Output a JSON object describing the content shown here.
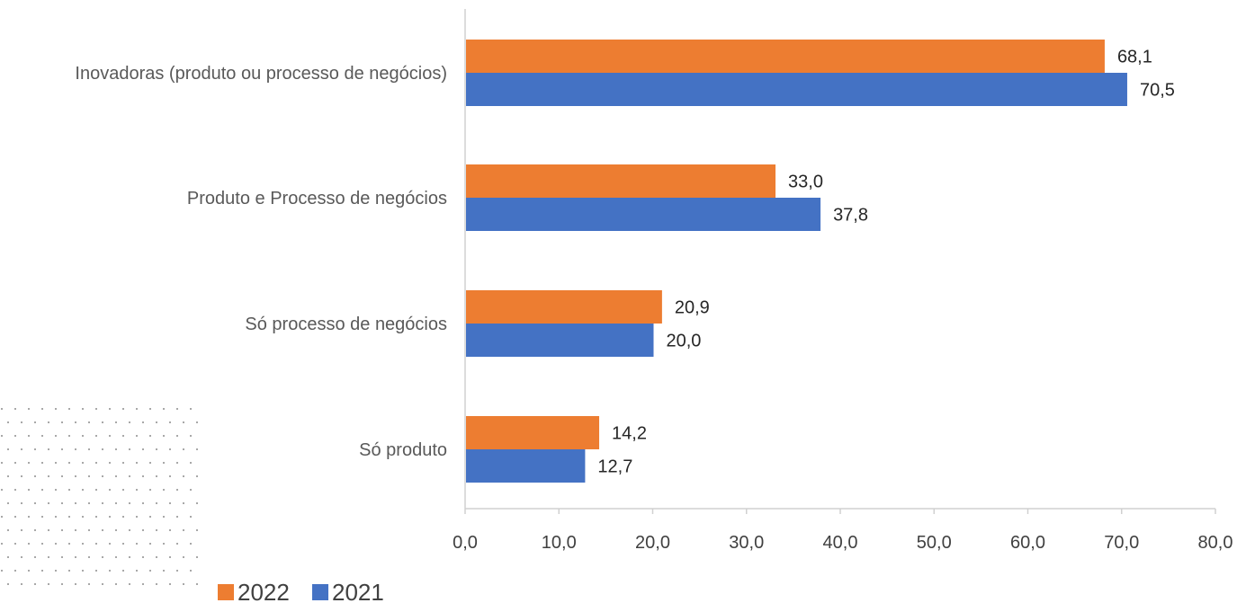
{
  "chart_data": {
    "type": "bar",
    "orientation": "horizontal",
    "categories": [
      "Inovadoras (produto ou processo de negócios)",
      "Produto e Processo de negócios",
      "Só processo de negócios",
      "Só produto"
    ],
    "series": [
      {
        "name": "2022",
        "color": "#ED7D31",
        "values": [
          68.1,
          33.0,
          20.9,
          14.2
        ],
        "labels": [
          "68,1",
          "33,0",
          "20,9",
          "14,2"
        ]
      },
      {
        "name": "2021",
        "color": "#4472C4",
        "values": [
          70.5,
          37.8,
          20.0,
          12.7
        ],
        "labels": [
          "70,5",
          "37,8",
          "20,0",
          "12,7"
        ]
      }
    ],
    "xlim": [
      0,
      80
    ],
    "ticks": [
      0,
      10,
      20,
      30,
      40,
      50,
      60,
      70,
      80
    ],
    "tick_labels": [
      "0,0",
      "10,0",
      "20,0",
      "30,0",
      "40,0",
      "50,0",
      "60,0",
      "70,0",
      "80,0"
    ],
    "grid": false,
    "legend_position": "bottom-left"
  }
}
